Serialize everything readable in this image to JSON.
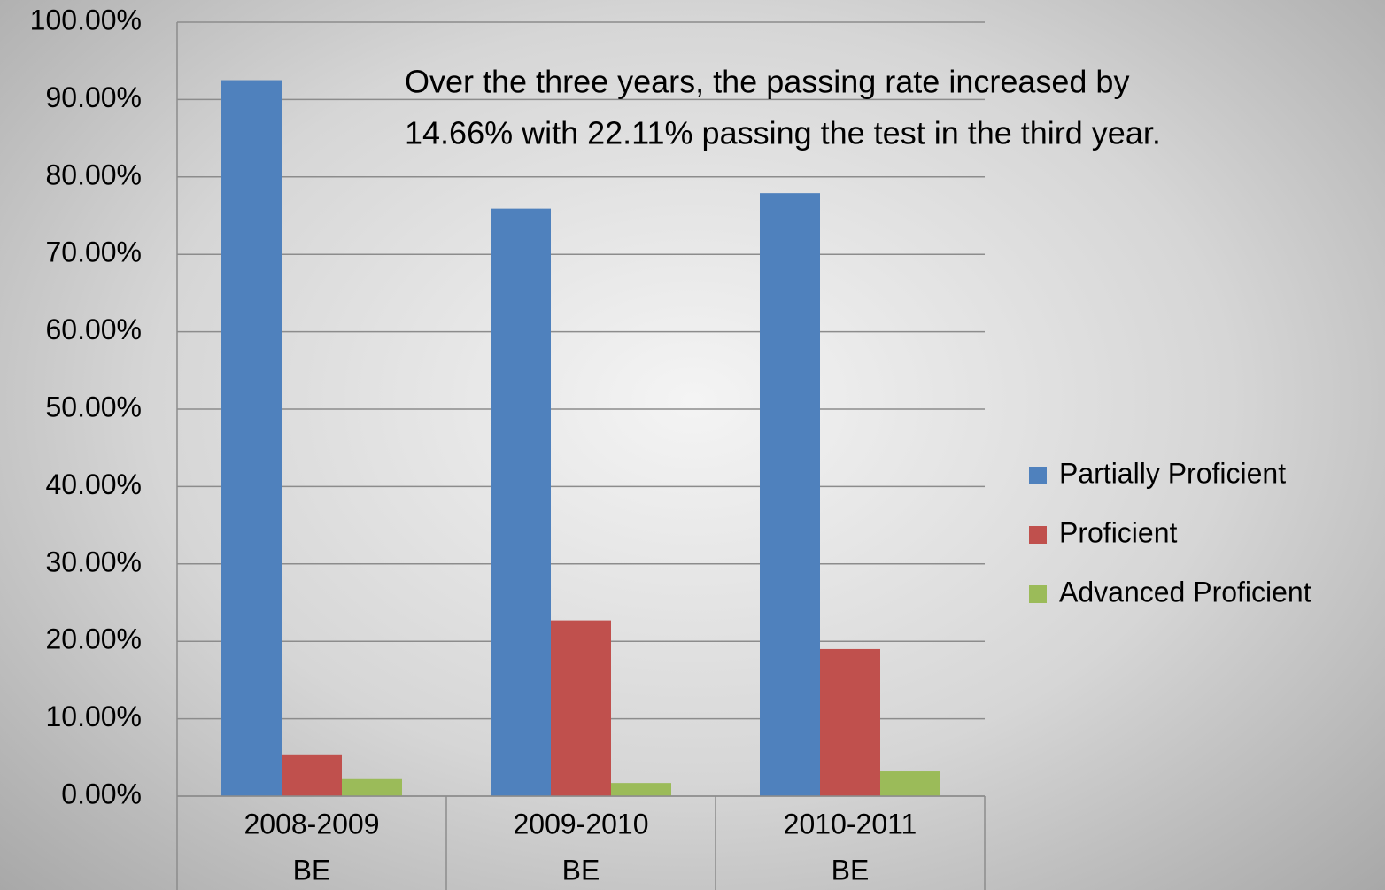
{
  "chart_data": {
    "type": "bar",
    "annotation": [
      "Over the three years, the passing rate increased by",
      "14.66% with 22.11% passing the test in the third year."
    ],
    "categories": [
      [
        "2008-2009",
        "BE"
      ],
      [
        "2009-2010",
        "BE"
      ],
      [
        "2010-2011",
        "BE"
      ]
    ],
    "series": [
      {
        "name": "Partially Proficient",
        "color": "#4f81bd",
        "values": [
          92.5,
          75.9,
          77.9
        ]
      },
      {
        "name": "Proficient",
        "color": "#c0504d",
        "values": [
          5.4,
          22.7,
          19.0
        ]
      },
      {
        "name": "Advanced Proficient",
        "color": "#9bbb59",
        "values": [
          2.2,
          1.7,
          3.2
        ]
      }
    ],
    "ylim": [
      0,
      100
    ],
    "yticks": [
      {
        "value": 0,
        "label": "0.00%"
      },
      {
        "value": 10,
        "label": "10.00%"
      },
      {
        "value": 20,
        "label": "20.00%"
      },
      {
        "value": 30,
        "label": "30.00%"
      },
      {
        "value": 40,
        "label": "40.00%"
      },
      {
        "value": 50,
        "label": "50.00%"
      },
      {
        "value": 60,
        "label": "60.00%"
      },
      {
        "value": 70,
        "label": "70.00%"
      },
      {
        "value": 80,
        "label": "80.00%"
      },
      {
        "value": 90,
        "label": "90.00%"
      },
      {
        "value": 100,
        "label": "100.00%"
      }
    ],
    "grid": true,
    "legend": "right"
  }
}
